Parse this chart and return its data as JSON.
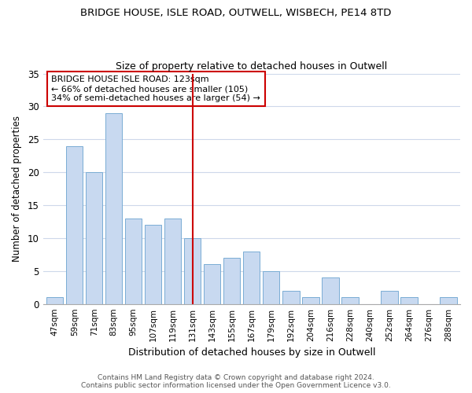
{
  "title": "BRIDGE HOUSE, ISLE ROAD, OUTWELL, WISBECH, PE14 8TD",
  "subtitle": "Size of property relative to detached houses in Outwell",
  "xlabel": "Distribution of detached houses by size in Outwell",
  "ylabel": "Number of detached properties",
  "bar_labels": [
    "47sqm",
    "59sqm",
    "71sqm",
    "83sqm",
    "95sqm",
    "107sqm",
    "119sqm",
    "131sqm",
    "143sqm",
    "155sqm",
    "167sqm",
    "179sqm",
    "192sqm",
    "204sqm",
    "216sqm",
    "228sqm",
    "240sqm",
    "252sqm",
    "264sqm",
    "276sqm",
    "288sqm"
  ],
  "bar_values": [
    1,
    24,
    20,
    29,
    13,
    12,
    13,
    10,
    6,
    7,
    8,
    5,
    2,
    1,
    4,
    1,
    0,
    2,
    1,
    0,
    1
  ],
  "bar_color": "#c8d9f0",
  "bar_edge_color": "#7aadd4",
  "vline_x": 7,
  "vline_color": "#cc0000",
  "annotation_title": "BRIDGE HOUSE ISLE ROAD: 123sqm",
  "annotation_line1": "← 66% of detached houses are smaller (105)",
  "annotation_line2": "34% of semi-detached houses are larger (54) →",
  "annotation_box_color": "#ffffff",
  "annotation_box_edge": "#cc0000",
  "ylim": [
    0,
    35
  ],
  "yticks": [
    0,
    5,
    10,
    15,
    20,
    25,
    30,
    35
  ],
  "footer1": "Contains HM Land Registry data © Crown copyright and database right 2024.",
  "footer2": "Contains public sector information licensed under the Open Government Licence v3.0.",
  "bg_color": "#ffffff",
  "grid_color": "#cdd8ea"
}
